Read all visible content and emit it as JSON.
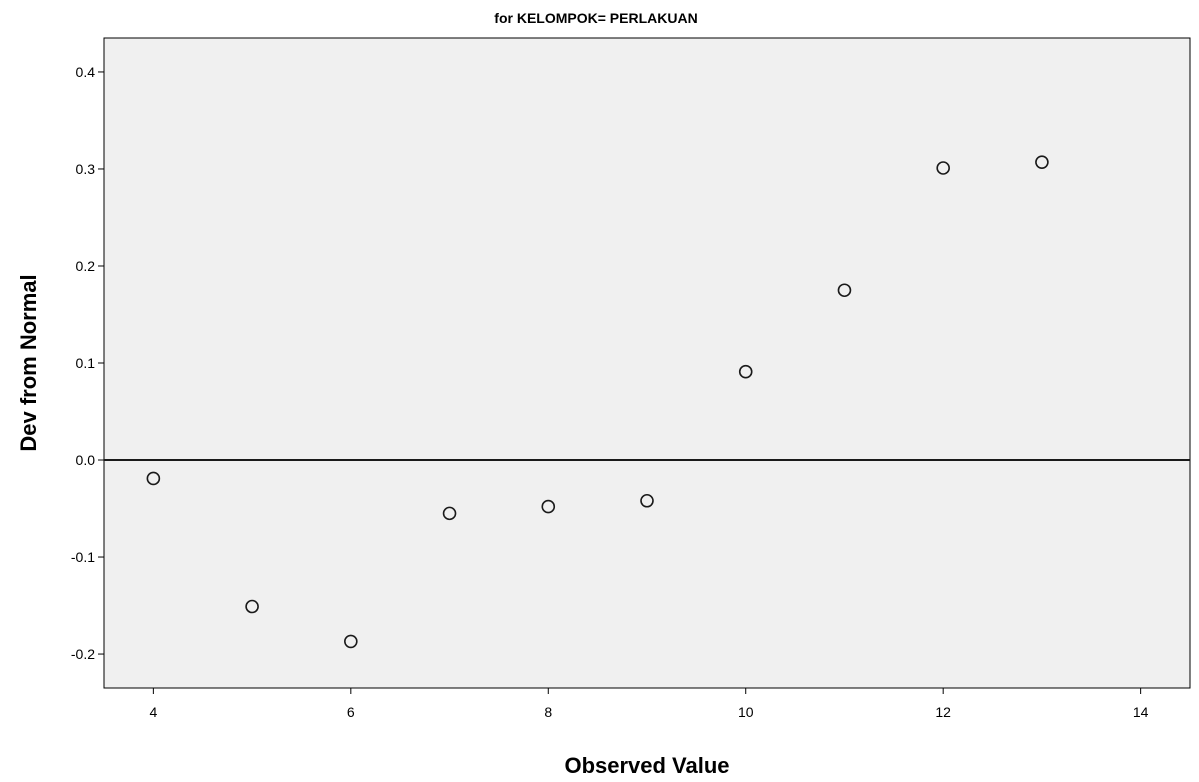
{
  "chart_data": {
    "type": "scatter",
    "title": "for KELOMPOK= PERLAKUAN",
    "xlabel": "Observed Value",
    "ylabel": "Dev from Normal",
    "xlim": [
      3.5,
      14.5
    ],
    "ylim": [
      -0.235,
      0.435
    ],
    "x_ticks": [
      4,
      6,
      8,
      10,
      12,
      14
    ],
    "y_ticks": [
      -0.2,
      -0.1,
      0.0,
      0.1,
      0.2,
      0.3,
      0.4
    ],
    "x_tick_labels": [
      "4",
      "6",
      "8",
      "10",
      "12",
      "14"
    ],
    "y_tick_labels": [
      "-0.2",
      "-0.1",
      "0.0",
      "0.1",
      "0.2",
      "0.3",
      "0.4"
    ],
    "reference_line_y": 0,
    "grid": false,
    "legend": "none",
    "colors": {
      "plot_background": "#f0f0f0",
      "marker_stroke": "#1a1a1a",
      "marker_fill": "#f0f0f0",
      "axis": "#000000"
    },
    "points": [
      {
        "x": 4,
        "y": -0.019
      },
      {
        "x": 5,
        "y": -0.151
      },
      {
        "x": 6,
        "y": -0.187
      },
      {
        "x": 7,
        "y": -0.055
      },
      {
        "x": 8,
        "y": -0.048
      },
      {
        "x": 9,
        "y": -0.042
      },
      {
        "x": 10,
        "y": 0.091
      },
      {
        "x": 11,
        "y": 0.175
      },
      {
        "x": 12,
        "y": 0.301
      },
      {
        "x": 13,
        "y": 0.307
      }
    ]
  }
}
